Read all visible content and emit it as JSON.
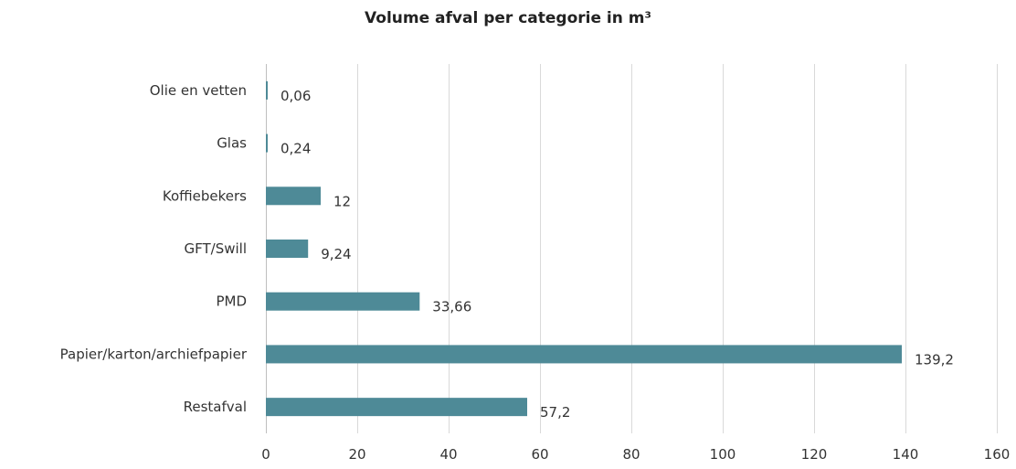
{
  "chart_data": {
    "type": "bar",
    "orientation": "horizontal",
    "title": "Volume afval per categorie in m³",
    "xlabel": "",
    "ylabel": "",
    "categories": [
      "Olie en vetten",
      "Glas",
      "Koffiebekers",
      "GFT/Swill",
      "PMD",
      "Papier/karton/archiefpapier",
      "Restafval"
    ],
    "values": [
      0.06,
      0.24,
      12,
      9.24,
      33.66,
      139.2,
      57.2
    ],
    "value_labels": [
      "0,06",
      "0,24",
      "12",
      "9,24",
      "33,66",
      "139,2",
      "57,2"
    ],
    "xlim": [
      0,
      160
    ],
    "xticks": [
      0,
      20,
      40,
      60,
      80,
      100,
      120,
      140,
      160
    ],
    "grid": "vertical",
    "legend": "none",
    "bar_color": "#4e8a97"
  }
}
